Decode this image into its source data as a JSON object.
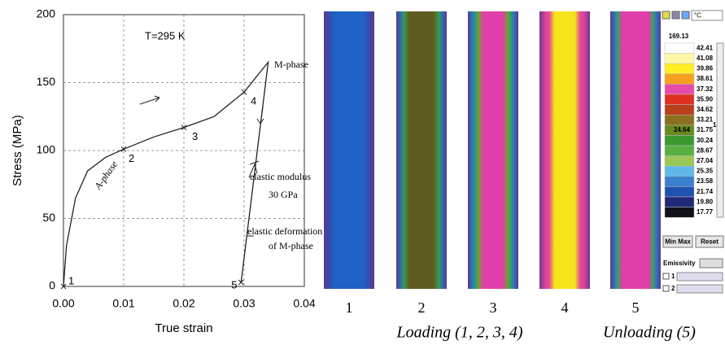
{
  "chart_data": {
    "type": "line",
    "xlabel": "True strain",
    "ylabel": "Stress (MPa)",
    "x": [
      0,
      0.0005,
      0.002,
      0.004,
      0.007,
      0.01,
      0.015,
      0.02,
      0.025,
      0.03,
      0.034,
      0.0295
    ],
    "values": [
      0,
      30,
      65,
      85,
      95,
      101,
      110,
      117,
      125,
      143,
      165,
      3
    ],
    "color": "#222222",
    "xlim": [
      0,
      0.04
    ],
    "xticks": [
      {
        "value": 0,
        "label": "0.00"
      },
      0.01,
      0.02,
      0.03,
      0.04
    ],
    "ylim": [
      0,
      200
    ],
    "yticks": [
      0,
      50,
      100,
      150,
      200
    ],
    "grid": true,
    "points": [
      {
        "label": "1",
        "x": 0,
        "y": 0
      },
      {
        "label": "2",
        "x": 0.01,
        "y": 101
      },
      {
        "label": "3",
        "x": 0.02,
        "y": 117
      },
      {
        "label": "4",
        "x": 0.03,
        "y": 143
      },
      {
        "label": "5",
        "x": 0.0295,
        "y": 3
      }
    ],
    "annotations": [
      "T=295 K",
      "M-phase",
      "A-phase",
      "elastic modulus",
      "30 GPa",
      "elastic deformation",
      "of M-phase"
    ]
  },
  "thermal_images": {
    "labels": [
      "1",
      "2",
      "3",
      "4",
      "5"
    ],
    "loading": "Loading (1, 2, 3, 4)",
    "unloading": "Unloading (5)"
  },
  "color_scale": {
    "unit": "°C",
    "max": "169.13",
    "labels": [
      "42.41",
      "41.08",
      "39.86",
      "38.61",
      "37.32",
      "35.90",
      "34.62",
      "33.21",
      "31.75",
      "30.24",
      "28.67",
      "27.04",
      "25.35",
      "23.58",
      "21.74",
      "19.80",
      "17.77"
    ],
    "cursor": "24.64",
    "cursor_index": "1",
    "buttons": [
      "Min Max",
      "Reset"
    ],
    "emissivity": "Emissivity",
    "channels": [
      "1",
      "2"
    ]
  }
}
